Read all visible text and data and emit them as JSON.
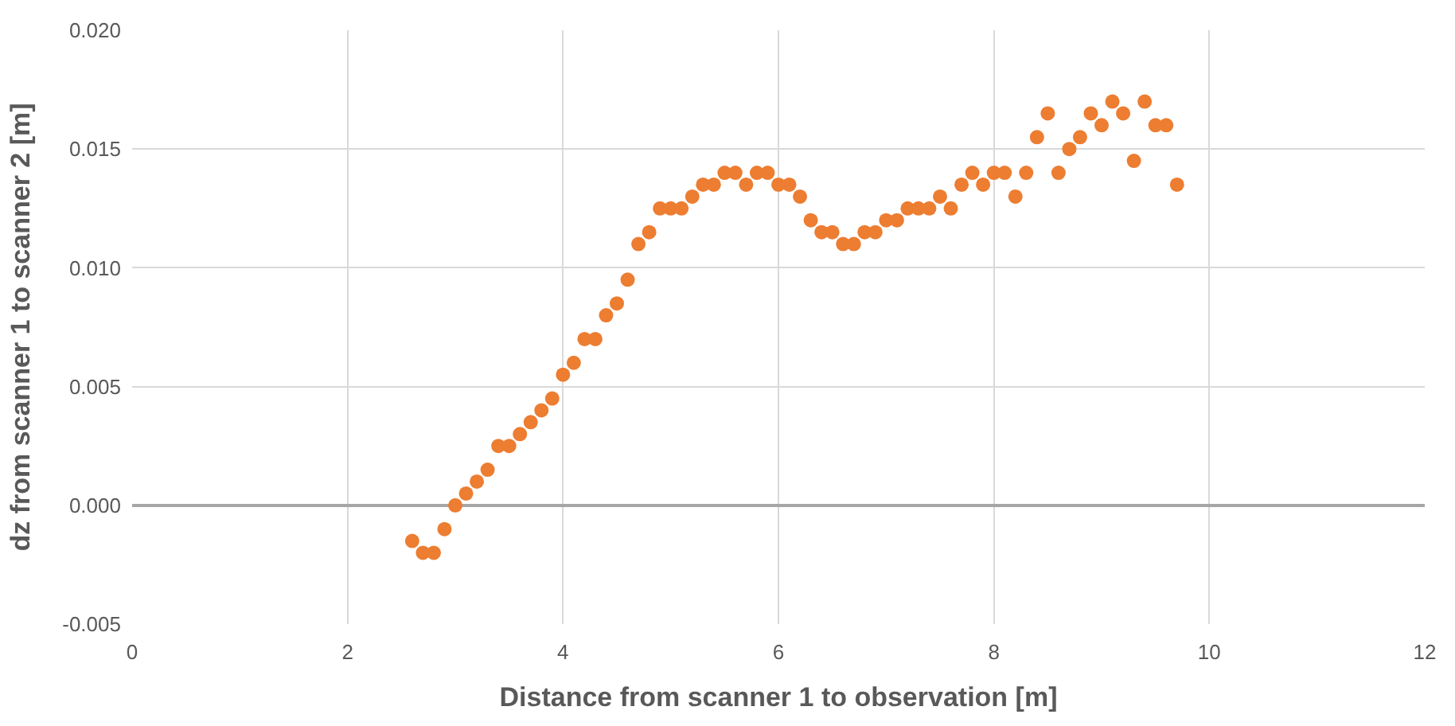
{
  "chart_data": {
    "type": "scatter",
    "xlabel": "Distance from scanner 1 to observation [m]",
    "ylabel": "dz from scanner 1 to scanner 2 [m]",
    "x": [
      2.6,
      2.7,
      2.8,
      2.9,
      3.0,
      3.1,
      3.2,
      3.3,
      3.4,
      3.5,
      3.6,
      3.7,
      3.8,
      3.9,
      4.0,
      4.1,
      4.2,
      4.3,
      4.4,
      4.5,
      4.6,
      4.7,
      4.8,
      4.9,
      5.0,
      5.1,
      5.2,
      5.3,
      5.4,
      5.5,
      5.6,
      5.7,
      5.8,
      5.9,
      6.0,
      6.1,
      6.2,
      6.3,
      6.4,
      6.5,
      6.6,
      6.7,
      6.8,
      6.9,
      7.0,
      7.1,
      7.2,
      7.3,
      7.4,
      7.5,
      7.6,
      7.7,
      7.8,
      7.9,
      8.0,
      8.1,
      8.2,
      8.3,
      8.4,
      8.5,
      8.6,
      8.7,
      8.8,
      8.9,
      9.0,
      9.1,
      9.2,
      9.3,
      9.4,
      9.5,
      9.6,
      9.7
    ],
    "series": [
      {
        "color": "#ed7d31",
        "values": [
          -0.0015,
          -0.002,
          -0.002,
          -0.001,
          0.0,
          0.0005,
          0.001,
          0.0015,
          0.0025,
          0.0025,
          0.003,
          0.0035,
          0.004,
          0.0045,
          0.0055,
          0.006,
          0.007,
          0.007,
          0.008,
          0.0085,
          0.0095,
          0.011,
          0.0115,
          0.0125,
          0.0125,
          0.0125,
          0.013,
          0.0135,
          0.0135,
          0.014,
          0.014,
          0.0135,
          0.014,
          0.014,
          0.0135,
          0.0135,
          0.013,
          0.012,
          0.0115,
          0.0115,
          0.011,
          0.011,
          0.0115,
          0.0115,
          0.012,
          0.012,
          0.0125,
          0.0125,
          0.0125,
          0.013,
          0.0125,
          0.0135,
          0.014,
          0.0135,
          0.014,
          0.014,
          0.013,
          0.014,
          0.0155,
          0.0165,
          0.014,
          0.015,
          0.0155,
          0.0165,
          0.016,
          0.017,
          0.0165,
          0.0145,
          0.017,
          0.016,
          0.016,
          0.0135
        ]
      }
    ],
    "xlim": [
      0,
      12
    ],
    "xticks": [
      0,
      2,
      4,
      6,
      8,
      10,
      12
    ],
    "ylim": [
      -0.005,
      0.02
    ],
    "yticks": [
      {
        "value": -0.005,
        "label": "-0.005"
      },
      {
        "value": 0,
        "label": "0.000"
      },
      {
        "value": 0.005,
        "label": "0.005"
      },
      {
        "value": 0.01,
        "label": "0.010"
      },
      {
        "value": 0.015,
        "label": "0.015"
      },
      {
        "value": 0.02,
        "label": "0.020"
      }
    ],
    "grid": true,
    "marker": "circle"
  }
}
